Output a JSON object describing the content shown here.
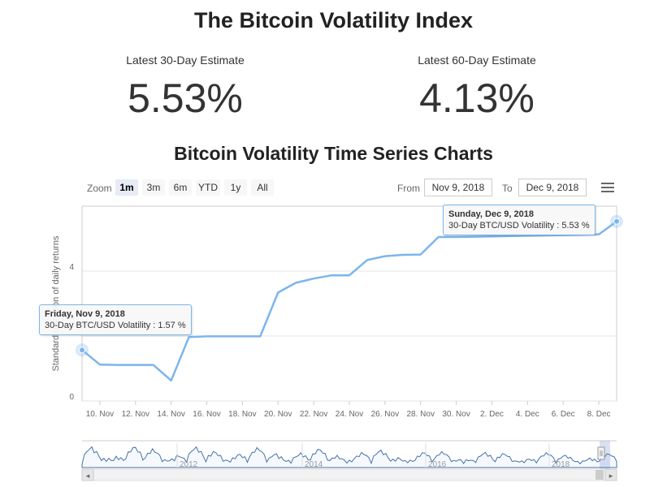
{
  "title": "The Bitcoin Volatility Index",
  "estimates": [
    {
      "label": "Latest 30-Day Estimate",
      "value": "5.53%"
    },
    {
      "label": "Latest 60-Day Estimate",
      "value": "4.13%"
    }
  ],
  "section_title": "Bitcoin Volatility Time Series Charts",
  "zoom": {
    "label": "Zoom",
    "buttons": [
      "1m",
      "3m",
      "6m",
      "YTD",
      "1y",
      "All"
    ],
    "active": "1m"
  },
  "range": {
    "from_label": "From",
    "from_value": "Nov 9, 2018",
    "to_label": "To",
    "to_value": "Dec 9, 2018"
  },
  "tooltips": {
    "left": {
      "date": "Friday, Nov 9, 2018",
      "text": "30-Day BTC/USD Volatility : 1.57 %"
    },
    "right": {
      "date": "Sunday, Dec 9, 2018",
      "text": "30-Day BTC/USD Volatility : 5.53 %"
    }
  },
  "navigator": {
    "year_labels": [
      "2012",
      "2014",
      "2016",
      "2018"
    ]
  },
  "chart_data": {
    "type": "line",
    "title": "",
    "ylabel": "Standard deviation of daily returns",
    "xlabel": "",
    "ylim": [
      0,
      6
    ],
    "yticks": [
      0,
      2,
      4
    ],
    "ytick_labels": [
      "0",
      "",
      "4"
    ],
    "xticks": [
      "10. Nov",
      "12. Nov",
      "14. Nov",
      "16. Nov",
      "18. Nov",
      "20. Nov",
      "22. Nov",
      "24. Nov",
      "26. Nov",
      "28. Nov",
      "30. Nov",
      "2. Dec",
      "4. Dec",
      "6. Dec",
      "8. Dec"
    ],
    "x": [
      "Nov 9",
      "Nov 10",
      "Nov 11",
      "Nov 12",
      "Nov 13",
      "Nov 14",
      "Nov 15",
      "Nov 16",
      "Nov 17",
      "Nov 18",
      "Nov 19",
      "Nov 20",
      "Nov 21",
      "Nov 22",
      "Nov 23",
      "Nov 24",
      "Nov 25",
      "Nov 26",
      "Nov 27",
      "Nov 28",
      "Nov 29",
      "Nov 30",
      "Dec 1",
      "Dec 2",
      "Dec 3",
      "Dec 4",
      "Dec 5",
      "Dec 6",
      "Dec 7",
      "Dec 8",
      "Dec 9"
    ],
    "series": [
      {
        "name": "30-Day BTC/USD Volatility",
        "values": [
          1.57,
          1.12,
          1.11,
          1.11,
          1.11,
          0.63,
          1.97,
          1.99,
          1.99,
          1.99,
          1.99,
          3.34,
          3.64,
          3.77,
          3.87,
          3.87,
          4.34,
          4.46,
          4.5,
          4.51,
          5.05,
          5.05,
          5.06,
          5.07,
          5.08,
          5.09,
          5.1,
          5.11,
          5.12,
          5.13,
          5.53
        ]
      }
    ],
    "color": "#7cb5ec",
    "grid": true,
    "legend": "none"
  }
}
